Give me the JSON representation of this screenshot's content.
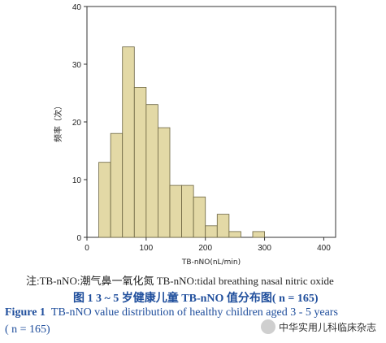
{
  "chart_data": {
    "type": "bar",
    "xlabel": "TB-nNO(nL/min)",
    "ylabel": "频率（次）",
    "xlim": [
      0,
      420
    ],
    "ylim": [
      0,
      40
    ],
    "xticks": [
      0,
      100,
      200,
      300,
      400
    ],
    "yticks": [
      0,
      10,
      20,
      30,
      40
    ],
    "bin_width": 20,
    "bins": [
      {
        "x0": 20,
        "x1": 40,
        "count": 13
      },
      {
        "x0": 40,
        "x1": 60,
        "count": 18
      },
      {
        "x0": 60,
        "x1": 80,
        "count": 33
      },
      {
        "x0": 80,
        "x1": 100,
        "count": 26
      },
      {
        "x0": 100,
        "x1": 120,
        "count": 23
      },
      {
        "x0": 120,
        "x1": 140,
        "count": 19
      },
      {
        "x0": 140,
        "x1": 160,
        "count": 9
      },
      {
        "x0": 160,
        "x1": 180,
        "count": 9
      },
      {
        "x0": 180,
        "x1": 200,
        "count": 7
      },
      {
        "x0": 200,
        "x1": 220,
        "count": 2
      },
      {
        "x0": 220,
        "x1": 240,
        "count": 4
      },
      {
        "x0": 240,
        "x1": 260,
        "count": 1
      },
      {
        "x0": 280,
        "x1": 300,
        "count": 1
      }
    ],
    "bar_color": "#e3d9a6",
    "bar_stroke": "#6b6440",
    "grid": false
  },
  "note": "注:TB-nNO:潮气鼻一氧化氮 TB-nNO:tidal breathing nasal nitric oxide",
  "cn_caption": "图 1 3 ~ 5 岁健康儿童 TB-nNO 值分布图( n = 165)",
  "en_caption_label": "Figure 1",
  "en_caption_text": "TB-nNO value distribution of healthy children aged 3 - 5 years",
  "en_caption_n": "( n = 165)",
  "watermark": "中华实用儿科临床杂志",
  "colors": {
    "caption_blue": "#1f4e9c"
  }
}
